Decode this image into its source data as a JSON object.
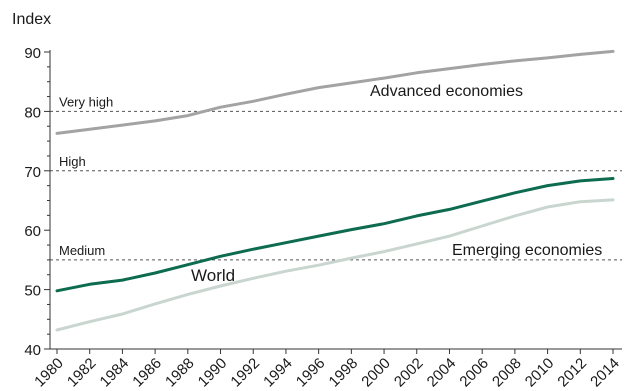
{
  "chart_data": {
    "type": "line",
    "ylabel": "Index",
    "ylim": [
      40,
      90
    ],
    "yticks": [
      40,
      50,
      60,
      70,
      80,
      90
    ],
    "x": [
      1980,
      1982,
      1984,
      1986,
      1988,
      1990,
      1992,
      1994,
      1996,
      1998,
      2000,
      2002,
      2004,
      2006,
      2008,
      2010,
      2012,
      2014
    ],
    "xtick_labels": [
      "1980",
      "1982",
      "1984",
      "1986",
      "1988",
      "1990",
      "1992",
      "1994",
      "1996",
      "1998",
      "2000",
      "2002",
      "2004",
      "2006",
      "2008",
      "2010",
      "2012",
      "2014"
    ],
    "series": [
      {
        "name": "Advanced economies",
        "color": "#a3a3a3",
        "values": [
          76.3,
          77.0,
          77.7,
          78.4,
          79.3,
          80.7,
          81.7,
          82.9,
          84.0,
          84.8,
          85.6,
          86.5,
          87.2,
          87.9,
          88.5,
          89.0,
          89.6,
          90.1
        ]
      },
      {
        "name": "World",
        "color": "#0d6b4f",
        "values": [
          49.8,
          50.9,
          51.6,
          52.8,
          54.2,
          55.6,
          56.8,
          57.9,
          59.0,
          60.1,
          61.1,
          62.4,
          63.5,
          64.9,
          66.3,
          67.5,
          68.3,
          68.7
        ]
      },
      {
        "name": "Emerging economies",
        "color": "#c9d6cf",
        "values": [
          43.2,
          44.6,
          45.9,
          47.6,
          49.2,
          50.6,
          51.9,
          53.1,
          54.1,
          55.3,
          56.4,
          57.7,
          59.0,
          60.7,
          62.4,
          63.9,
          64.8,
          65.1
        ]
      }
    ],
    "reference_lines": [
      {
        "label": "Very high",
        "value": 80
      },
      {
        "label": "High",
        "value": 70
      },
      {
        "label": "Medium",
        "value": 55
      }
    ],
    "grid": false
  }
}
